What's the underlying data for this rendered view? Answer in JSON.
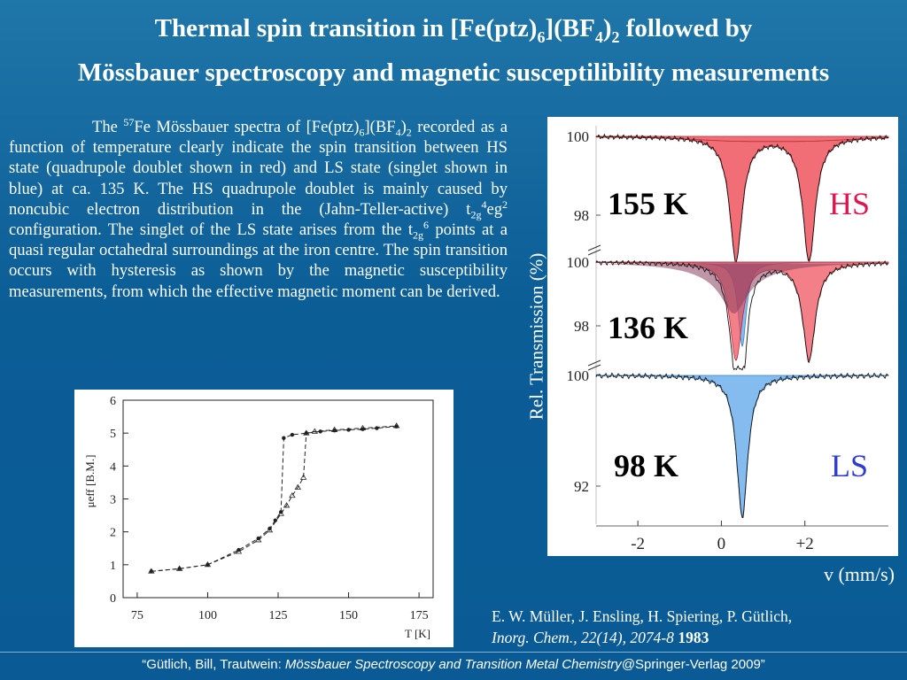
{
  "slide": {
    "title_pre": "Thermal spin transition in [Fe(ptz)",
    "title_sub1": "6",
    "title_mid": "](BF",
    "title_sub2": "4",
    "title_mid2": ")",
    "title_sub3": "2",
    "title_post": " followed by",
    "title_line2": "Mössbauer spectroscopy and magnetic susceptilibility measurements"
  },
  "paragraph": {
    "p1": "The ",
    "sup57": "57",
    "p2": "Fe Mössbauer spectra of [Fe(ptz)",
    "s6": "6",
    "p3": "](BF",
    "s4": "4",
    "p4": ")",
    "s2": "2",
    "p5": " recorded as a function of temperature clearly indicate the spin transition between HS state (quadrupole doublet shown in red) and LS state (singlet shown in blue) at ca. 135 K.  The HS quadrupole doublet is mainly caused by noncubic electron distribution in the (Jahn-Teller-active)   t",
    "s2g": "2g",
    "sup4": "4",
    "p6": "eg",
    "sup2": "2",
    "p7": " configuration. The singlet of the LS state arises from the t",
    "s2g_b": "2g",
    "sup6": "6",
    "p8": " points at a quasi regular octahedral surroundings at the iron centre. The spin transition occurs with hysteresis as shown by the magnetic susceptibility measurements, from which the effective magnetic moment can be derived."
  },
  "citation": {
    "authors": "E. W. Müller, J. Ensling, H. Spiering, P. Gütlich,",
    "journal": "Inorg. Chem., 22(14), 2074-8",
    "year": " 1983"
  },
  "footer": {
    "pre": "“Gütlich, Bill, Trautwein: ",
    "book": "Mössbauer Spectroscopy and Transition Metal Chemistry",
    "post": "@Springer-Verlag 2009”"
  },
  "labels": {
    "y_axis": "Rel. Transmission (%)",
    "x_axis": "v (mm/s)"
  },
  "colors": {
    "hs_fill": "#ee4a55",
    "ls_fill": "#6fb0ec",
    "hs_label": "#e0154f",
    "ls_label": "#2f3bd1"
  },
  "chart_data": [
    {
      "type": "scatter",
      "title": "",
      "xlabel": "T  [K]",
      "ylabel": "μeff [B.M.]",
      "xlim": [
        70,
        180
      ],
      "ylim": [
        0,
        6
      ],
      "xticks": [
        "75",
        "100",
        "125",
        "150",
        "175"
      ],
      "yticks": [
        "0",
        "1",
        "2",
        "3",
        "4",
        "5",
        "6"
      ],
      "series": [
        {
          "name": "",
          "x": [
            80,
            90,
            100,
            111,
            118,
            122,
            124,
            126,
            127,
            130,
            135,
            140,
            145,
            150,
            155,
            160,
            167
          ],
          "y": [
            0.8,
            0.88,
            1.0,
            1.45,
            1.8,
            2.1,
            2.35,
            2.6,
            4.85,
            4.95,
            5.0,
            5.05,
            5.08,
            5.1,
            5.12,
            5.15,
            5.2
          ]
        },
        {
          "name": "",
          "x": [
            80,
            90,
            100,
            111,
            118,
            122,
            126,
            128,
            130,
            132,
            134,
            135,
            138,
            145,
            155,
            167
          ],
          "y": [
            0.8,
            0.88,
            1.0,
            1.4,
            1.75,
            2.05,
            2.55,
            2.8,
            3.1,
            3.35,
            3.65,
            5.0,
            5.05,
            5.1,
            5.15,
            5.22
          ]
        }
      ]
    },
    {
      "type": "area",
      "title": "",
      "xlabel": "v (mm/s)",
      "ylabel": "Rel. Transmission (%)",
      "xticks": [
        "-2",
        "0",
        "+2"
      ],
      "panels": [
        {
          "temperature_label": "155 K",
          "state_label": "HS",
          "y_top_tick": "100",
          "y_bottom_tick": "98",
          "hs_doublet_lines_mm_s": [
            0.35,
            2.1
          ],
          "hs_depth_pct": 2.5
        },
        {
          "temperature_label": "136 K",
          "state_label": "",
          "y_top_tick": "100",
          "y_bottom_tick": "98",
          "hs_doublet_lines_mm_s": [
            0.35,
            2.1
          ],
          "ls_singlet_mm_s": 0.5,
          "min_transmission_pct": 97.3
        },
        {
          "temperature_label": "98 K",
          "state_label": "LS",
          "y_top_tick": "100",
          "y_bottom_tick": "92",
          "ls_singlet_mm_s": 0.5,
          "ls_depth_pct": 9
        }
      ]
    }
  ]
}
